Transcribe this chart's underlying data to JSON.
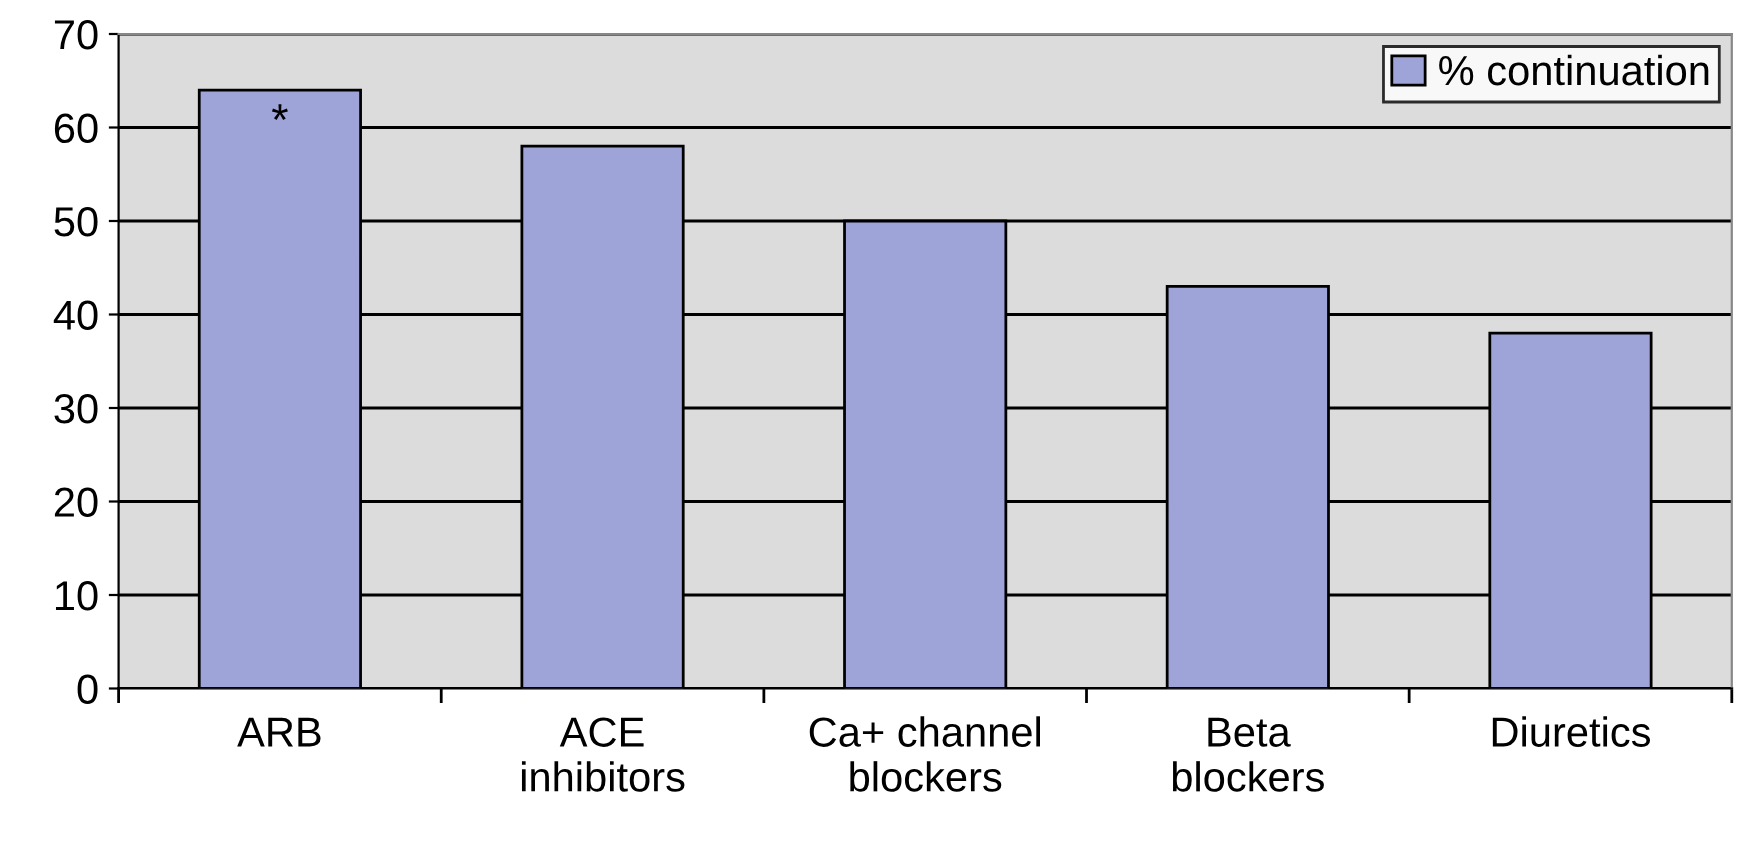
{
  "chart_data": {
    "type": "bar",
    "categories": [
      "ARB",
      "ACE\ninhibitors",
      "Ca+ channel\nblockers",
      "Beta\nblockers",
      "Diuretics"
    ],
    "series": [
      {
        "name": "% continuation",
        "color": "#9ea4d8",
        "values": [
          64,
          58,
          50,
          43,
          38
        ]
      }
    ],
    "ylim": [
      0,
      70
    ],
    "yticks": [
      0,
      10,
      20,
      30,
      40,
      50,
      60,
      70
    ],
    "grid": "y",
    "legend": "top right",
    "annotations": [
      "*"
    ]
  }
}
